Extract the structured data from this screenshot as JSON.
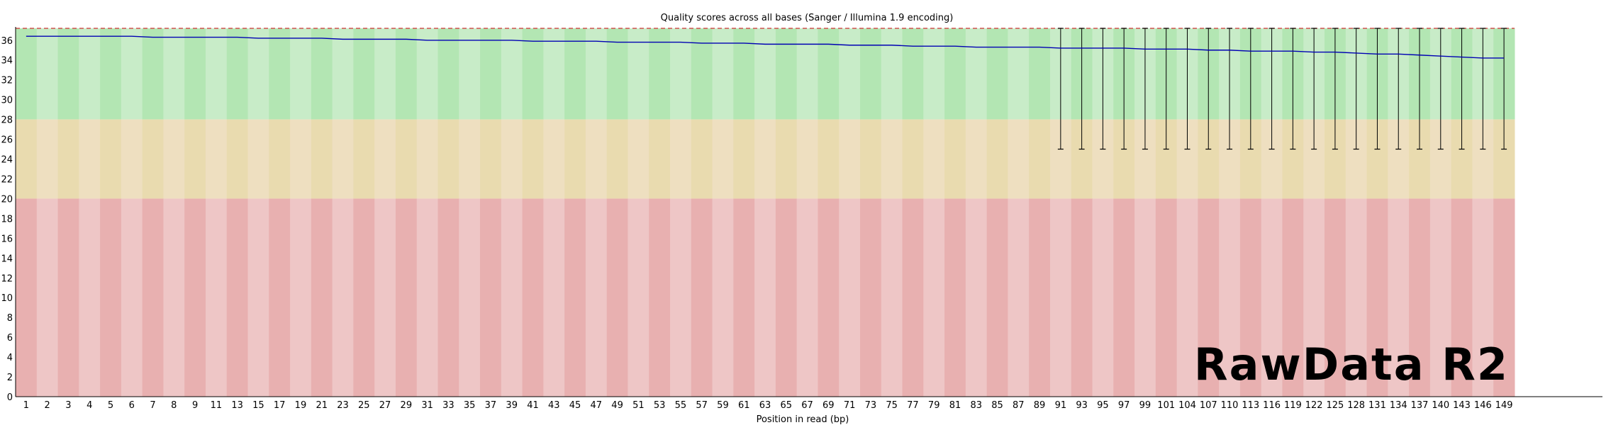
{
  "chart_data": {
    "type": "line",
    "title": "Quality scores across all bases (Sanger / Illumina 1.9 encoding)",
    "xlabel": "Position in read (bp)",
    "ylabel": "",
    "ylim": [
      0,
      37.2
    ],
    "y_ticks": [
      0,
      2,
      4,
      6,
      8,
      10,
      12,
      14,
      16,
      18,
      20,
      22,
      24,
      26,
      28,
      30,
      32,
      34,
      36
    ],
    "x_tick_labels": [
      "1",
      "2",
      "3",
      "4",
      "5",
      "6",
      "7",
      "8",
      "9",
      "11",
      "13",
      "15",
      "17",
      "19",
      "21",
      "23",
      "25",
      "27",
      "29",
      "31",
      "33",
      "35",
      "37",
      "39",
      "41",
      "43",
      "45",
      "47",
      "49",
      "51",
      "53",
      "55",
      "57",
      "59",
      "61",
      "63",
      "65",
      "67",
      "69",
      "71",
      "73",
      "75",
      "77",
      "79",
      "81",
      "83",
      "85",
      "87",
      "89",
      "91",
      "93",
      "95",
      "97",
      "99",
      "101",
      "104",
      "107",
      "110",
      "113",
      "116",
      "119",
      "122",
      "125",
      "128",
      "131",
      "134",
      "137",
      "140",
      "143",
      "146",
      "149"
    ],
    "bins": [
      "1",
      "2",
      "3",
      "4",
      "5",
      "6",
      "7",
      "8",
      "9",
      "10-11",
      "12-13",
      "14-15",
      "16-17",
      "18-19",
      "20-21",
      "22-23",
      "24-25",
      "26-27",
      "28-29",
      "30-31",
      "32-33",
      "34-35",
      "36-37",
      "38-39",
      "40-41",
      "42-43",
      "44-45",
      "46-47",
      "48-49",
      "50-51",
      "52-53",
      "54-55",
      "56-57",
      "58-59",
      "60-61",
      "62-63",
      "64-65",
      "66-67",
      "68-69",
      "70-71",
      "72-73",
      "74-75",
      "76-77",
      "78-79",
      "80-81",
      "82-83",
      "84-85",
      "86-87",
      "88-89",
      "90-91",
      "92-93",
      "94-95",
      "96-97",
      "98-99",
      "100-102",
      "103-105",
      "106-108",
      "109-111",
      "112-114",
      "115-117",
      "118-120",
      "121-123",
      "124-126",
      "127-129",
      "130-132",
      "133-135",
      "136-138",
      "139-141",
      "142-144",
      "145-147",
      "148-150"
    ],
    "background_bands": [
      {
        "from": 28,
        "to": 37.2,
        "color_dark": "#b3e6b3",
        "color_light": "#c8ecc8"
      },
      {
        "from": 20,
        "to": 28,
        "color_dark": "#e9dbaf",
        "color_light": "#eedfc0"
      },
      {
        "from": 0,
        "to": 20,
        "color_dark": "#e8b0b0",
        "color_light": "#eec6c6"
      }
    ],
    "series": [
      {
        "color": "#0000b3",
        "mean": [
          36.4,
          36.4,
          36.4,
          36.4,
          36.4,
          36.4,
          36.3,
          36.3,
          36.3,
          36.3,
          36.3,
          36.2,
          36.2,
          36.2,
          36.2,
          36.1,
          36.1,
          36.1,
          36.1,
          36.0,
          36.0,
          36.0,
          36.0,
          36.0,
          35.9,
          35.9,
          35.9,
          35.9,
          35.8,
          35.8,
          35.8,
          35.8,
          35.7,
          35.7,
          35.7,
          35.6,
          35.6,
          35.6,
          35.6,
          35.5,
          35.5,
          35.5,
          35.4,
          35.4,
          35.4,
          35.3,
          35.3,
          35.3,
          35.3,
          35.2,
          35.2,
          35.2,
          35.2,
          35.1,
          35.1,
          35.1,
          35.0,
          35.0,
          34.9,
          34.9,
          34.9,
          34.8,
          34.8,
          34.7,
          34.6,
          34.6,
          34.5,
          34.4,
          34.3,
          34.2,
          34.2
        ]
      }
    ],
    "whiskers": {
      "color": "#000000",
      "from_bin": "90-91",
      "low": 25,
      "high": 37.2
    },
    "grid": false,
    "legend": "none"
  },
  "stamp_text": "RawData R2"
}
